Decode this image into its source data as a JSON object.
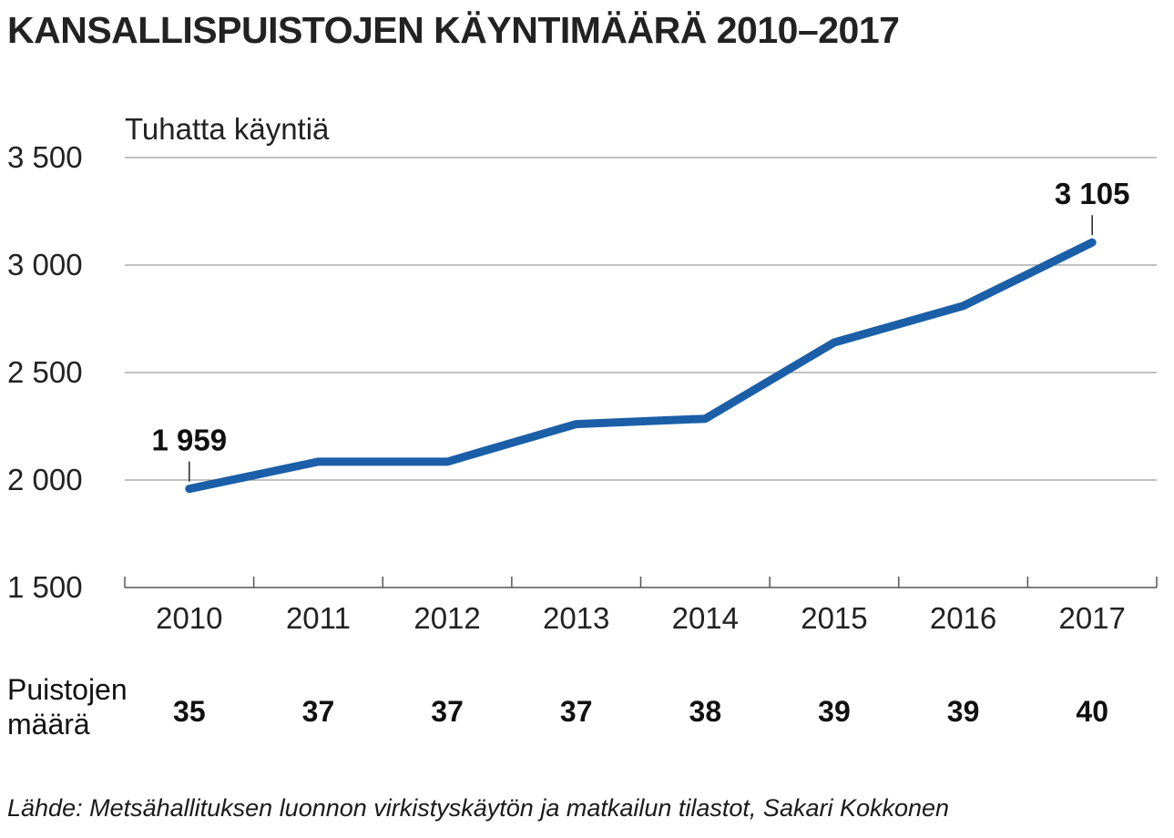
{
  "title": "KANSALLISPUISTOJEN KÄYNTIMÄÄRÄ 2010–2017",
  "source": "Lähde: Metsähallituksen luonnon virkistyskäytön ja matkailun tilastot, Sakari Kokkonen",
  "chart_data": {
    "type": "line",
    "ylabel": "Tuhatta käyntiä",
    "xlabel": "",
    "ylim": [
      1500,
      3500
    ],
    "yticks": [
      1500,
      2000,
      2500,
      3000,
      3500
    ],
    "ytick_labels": [
      "1 500",
      "2 000",
      "2 500",
      "3 000",
      "3 500"
    ],
    "grid": true,
    "color": "#1b5fa8",
    "categories": [
      "2010",
      "2011",
      "2012",
      "2013",
      "2014",
      "2015",
      "2016",
      "2017"
    ],
    "values": [
      1959,
      2085,
      2085,
      2260,
      2285,
      2640,
      2810,
      3105
    ],
    "data_labels": [
      {
        "index": 0,
        "text": "1 959"
      },
      {
        "index": 7,
        "text": "3 105"
      }
    ]
  },
  "parks": {
    "label_line1": "Puistojen",
    "label_line2": "määrä",
    "values": [
      "35",
      "37",
      "37",
      "37",
      "38",
      "39",
      "39",
      "40"
    ]
  }
}
